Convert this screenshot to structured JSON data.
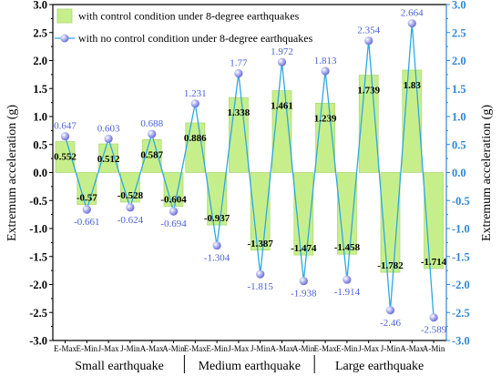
{
  "chart_data": {
    "type": "bar",
    "categories": [
      "E-Max",
      "E-Min",
      "J-Max",
      "J-Min",
      "A-Max",
      "A-Min",
      "E-Max",
      "E-Min",
      "J-Max",
      "J-Min",
      "A-Max",
      "A-Min",
      "E-Max",
      "E-Min",
      "J-Max",
      "J-Min",
      "A-Max",
      "A-Min"
    ],
    "groups": [
      "Small earthquake",
      "Medium earthquake",
      "Large earthquake"
    ],
    "series": [
      {
        "name": "with control condition under 8-degree earthquakes",
        "kind": "bar",
        "color": "#c6ef8c",
        "edge_color": "#a8d86a",
        "values": [
          0.552,
          -0.57,
          0.512,
          -0.528,
          0.587,
          -0.604,
          0.886,
          -0.937,
          1.338,
          -1.387,
          1.461,
          -1.474,
          1.239,
          -1.458,
          1.739,
          -1.782,
          1.83,
          -1.714
        ],
        "labels": [
          "0.552",
          "-0.57",
          "0.512",
          "-0.528",
          "0.587",
          "-0.604",
          "0.886",
          "-0.937",
          "1.338",
          "-1.387",
          "1.461",
          "-1.474",
          "1.239",
          "-1.458",
          "1.739",
          "-1.782",
          "1.83",
          "-1.714"
        ]
      },
      {
        "name": "with no control condition under 8-degree earthquakes",
        "kind": "line",
        "color": "#2fa8e0",
        "marker_color": "#8a8ee0",
        "label_color": "#4a5fd6",
        "values": [
          0.647,
          -0.661,
          0.603,
          -0.624,
          0.688,
          -0.694,
          1.231,
          -1.304,
          1.77,
          -1.815,
          1.972,
          -1.938,
          1.813,
          -1.914,
          2.354,
          -2.46,
          2.664,
          -2.589
        ],
        "labels": [
          "0.647",
          "-0.661",
          "0.603",
          "-0.624",
          "0.688",
          "-0.694",
          "1.231",
          "-1.304",
          "1.77",
          "-1.815",
          "1.972",
          "-1.938",
          "1.813",
          "-1.914",
          "2.354",
          "-2.46",
          "2.664",
          "-2.589"
        ]
      }
    ],
    "ylabel": "Extremum acceleration (g)",
    "ylim": [
      -3.0,
      3.0
    ],
    "yticks": [
      "-3.0",
      "-2.5",
      "-2.0",
      "-1.5",
      "-1.0",
      "-0.5",
      "0.0",
      "0.5",
      "1.0",
      "1.5",
      "2.0",
      "2.5",
      "3.0"
    ],
    "right_axis_color": "#2f86d6",
    "legend_position": "top-left",
    "grid": false
  }
}
